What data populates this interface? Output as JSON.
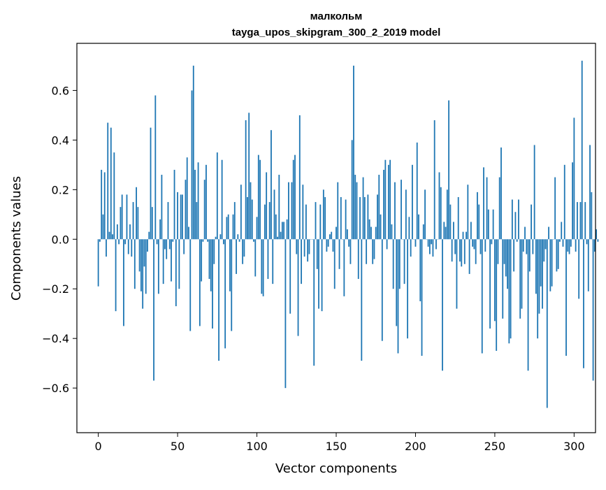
{
  "chart_data": {
    "type": "bar",
    "title": "малкольм",
    "subtitle": "tayga_upos_skipgram_300_2_2019 model",
    "xlabel": "Vector components",
    "ylabel": "Components values",
    "xlim": [
      -13.5,
      313.5
    ],
    "ylim": [
      -0.78,
      0.79
    ],
    "x_ticks": [
      0,
      50,
      100,
      150,
      200,
      250,
      300
    ],
    "y_ticks": [
      -0.6,
      -0.4,
      -0.2,
      0.0,
      0.2,
      0.4,
      0.6
    ],
    "x_tick_labels": [
      "0",
      "50",
      "100",
      "150",
      "200",
      "250",
      "300"
    ],
    "y_tick_labels": [
      "−0.6",
      "−0.4",
      "−0.2",
      "0.0",
      "0.2",
      "0.4",
      "0.6"
    ],
    "bar_color": "#1f77b4",
    "grid": false,
    "values": [
      -0.19,
      -0.01,
      0.28,
      0.1,
      0.27,
      -0.07,
      0.47,
      0.03,
      0.45,
      0.02,
      0.35,
      -0.29,
      0.06,
      -0.02,
      0.13,
      0.18,
      -0.35,
      -0.02,
      0.18,
      -0.06,
      0.06,
      -0.07,
      0.15,
      -0.2,
      0.21,
      0.13,
      -0.13,
      -0.21,
      -0.28,
      -0.11,
      -0.22,
      -0.05,
      0.03,
      0.45,
      0.13,
      -0.57,
      0.58,
      -0.02,
      -0.22,
      0.08,
      0.26,
      -0.18,
      -0.04,
      -0.08,
      0.15,
      -0.04,
      -0.17,
      -0.01,
      0.28,
      -0.27,
      0.19,
      -0.2,
      0.18,
      0.18,
      -0.06,
      0.24,
      0.33,
      0.05,
      -0.37,
      0.6,
      0.7,
      0.28,
      0.15,
      0.31,
      -0.35,
      -0.17,
      -0.01,
      0.24,
      0.3,
      -0.01,
      -0.16,
      -0.21,
      -0.36,
      -0.1,
      0.01,
      0.35,
      -0.49,
      0.02,
      0.32,
      -0.02,
      -0.44,
      0.09,
      0.1,
      -0.21,
      -0.37,
      0.1,
      0.15,
      -0.14,
      0.02,
      -0.01,
      0.22,
      -0.1,
      -0.07,
      0.48,
      0.17,
      0.51,
      0.23,
      0.16,
      -0.01,
      -0.15,
      0.09,
      0.34,
      0.32,
      -0.22,
      -0.23,
      0.14,
      0.27,
      -0.16,
      0.15,
      0.44,
      -0.18,
      0.2,
      0.1,
      0.01,
      0.26,
      0.03,
      0.07,
      0.07,
      -0.6,
      0.08,
      0.23,
      -0.3,
      0.23,
      0.32,
      0.34,
      -0.06,
      -0.39,
      0.5,
      -0.18,
      0.22,
      -0.07,
      0.14,
      -0.09,
      -0.06,
      0.0,
      0.0,
      -0.51,
      0.15,
      -0.12,
      -0.28,
      0.14,
      -0.29,
      0.2,
      0.17,
      -0.05,
      -0.03,
      0.02,
      0.03,
      -0.05,
      -0.2,
      0.05,
      0.23,
      -0.12,
      0.17,
      0.0,
      -0.23,
      0.16,
      0.04,
      -0.03,
      -0.1,
      0.4,
      0.7,
      0.26,
      0.23,
      -0.16,
      0.17,
      -0.49,
      0.25,
      0.17,
      -0.1,
      0.18,
      0.08,
      0.05,
      -0.1,
      -0.08,
      0.05,
      0.18,
      0.26,
      0.1,
      -0.41,
      0.28,
      0.32,
      -0.04,
      0.3,
      0.32,
      0.06,
      -0.2,
      0.23,
      -0.35,
      -0.46,
      -0.2,
      0.24,
      0.0,
      -0.18,
      0.2,
      -0.4,
      0.09,
      -0.07,
      0.3,
      0.0,
      -0.03,
      0.39,
      0.1,
      -0.25,
      -0.47,
      0.06,
      0.2,
      0.0,
      -0.03,
      -0.06,
      -0.02,
      -0.07,
      0.48,
      -0.04,
      0.0,
      0.27,
      0.21,
      -0.53,
      0.07,
      0.05,
      0.2,
      0.56,
      0.14,
      -0.09,
      0.07,
      -0.06,
      -0.28,
      0.17,
      -0.09,
      -0.11,
      0.03,
      -0.1,
      0.03,
      0.22,
      -0.14,
      0.07,
      -0.03,
      -0.04,
      -0.1,
      0.19,
      0.14,
      -0.06,
      -0.46,
      0.29,
      -0.05,
      0.25,
      0.12,
      -0.36,
      -0.02,
      0.12,
      -0.33,
      -0.45,
      -0.1,
      0.25,
      0.37,
      -0.32,
      -0.1,
      -0.15,
      -0.2,
      -0.42,
      -0.4,
      0.16,
      -0.13,
      0.11,
      -0.01,
      0.16,
      -0.32,
      -0.28,
      -0.05,
      0.05,
      -0.06,
      -0.53,
      -0.13,
      0.14,
      -0.06,
      0.38,
      -0.22,
      -0.4,
      -0.3,
      -0.19,
      -0.28,
      -0.09,
      -0.04,
      -0.68,
      0.05,
      -0.21,
      -0.19,
      0.0,
      0.25,
      -0.13,
      -0.12,
      -0.01,
      0.07,
      -0.03,
      0.3,
      -0.47,
      -0.05,
      -0.06,
      -0.03,
      0.31,
      0.49,
      -0.05,
      0.15,
      -0.24,
      0.15,
      0.72,
      -0.52,
      0.15,
      -0.02,
      -0.21,
      0.38,
      0.19,
      -0.57,
      -0.05,
      0.04,
      -0.01
    ]
  }
}
